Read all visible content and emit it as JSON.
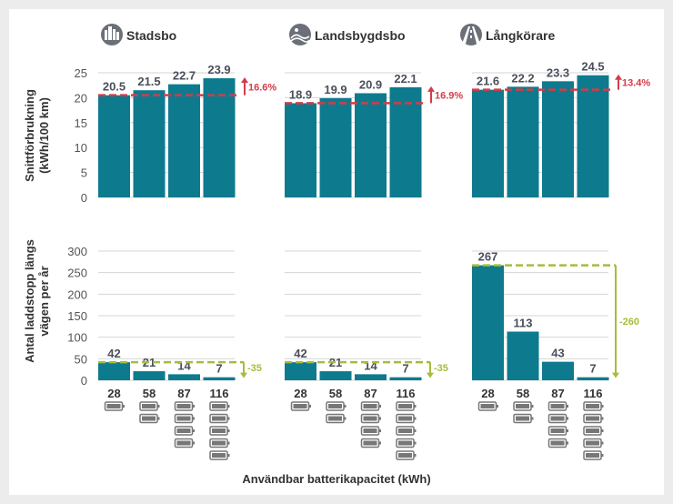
{
  "colors": {
    "bar": "#0e7a8e",
    "value_label": "#4a4f5c",
    "consumption_ref": "#d43c49",
    "stops_ref": "#a5bd3b",
    "axis_text": "#333333",
    "tick_text": "#555555",
    "grid": "#d4d4d4",
    "icon_fill": "#6b6f78",
    "battery": "#777777"
  },
  "chart_data": {
    "type": "bar",
    "x_label": "Användbar batterikapacitet (kWh)",
    "categories": [
      "28",
      "58",
      "87",
      "116"
    ],
    "battery_icons_per_category": [
      1,
      2,
      4,
      5
    ],
    "groups": [
      {
        "name": "Stadsbo",
        "icon": "city-icon",
        "consumption": [
          20.5,
          21.5,
          22.7,
          23.9
        ],
        "consumption_change_label": "16.6%",
        "stops": [
          42,
          21,
          14,
          7
        ],
        "stops_change_label": "-35"
      },
      {
        "name": "Landsbygdsbo",
        "icon": "countryside-icon",
        "consumption": [
          18.9,
          19.9,
          20.9,
          22.1
        ],
        "consumption_change_label": "16.9%",
        "stops": [
          42,
          21,
          14,
          7
        ],
        "stops_change_label": "-35"
      },
      {
        "name": "Långkörare",
        "icon": "highway-icon",
        "consumption": [
          21.6,
          22.2,
          23.3,
          24.5
        ],
        "consumption_change_label": "13.4%",
        "stops": [
          267,
          113,
          43,
          7
        ],
        "stops_change_label": "-260"
      }
    ],
    "top_panel": {
      "ylabel_line1": "Snittförbrukning",
      "ylabel_line2": "(kWh/100 km)",
      "ylim": [
        0,
        25
      ],
      "yticks": [
        0,
        5,
        10,
        15,
        20,
        25
      ]
    },
    "bottom_panel": {
      "ylabel_line1": "Antal laddstopp längs",
      "ylabel_line2": "vägen per år",
      "ylim": [
        0,
        300
      ],
      "yticks": [
        0,
        50,
        100,
        150,
        200,
        250,
        300
      ]
    }
  }
}
